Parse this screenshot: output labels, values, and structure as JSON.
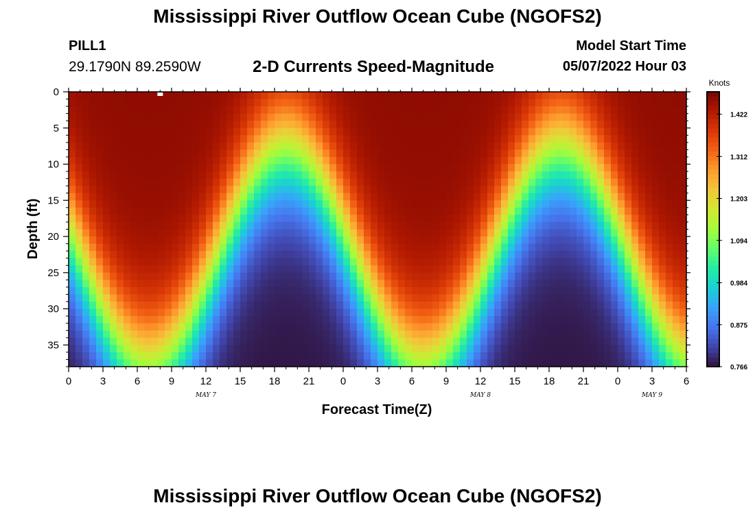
{
  "header": {
    "title": "Mississippi River Outflow Ocean Cube (NGOFS2)",
    "station": "PILL1",
    "coordinates": "29.1790N  89.2590W",
    "plot_title": "2-D Currents Speed-Magnitude",
    "model_start_label": "Model Start Time",
    "model_start_value": "05/07/2022 Hour 03"
  },
  "footer": {
    "title": "Mississippi River Outflow Ocean Cube (NGOFS2)"
  },
  "chart_data": {
    "type": "heatmap",
    "xlabel": "Forecast Time(Z)",
    "ylabel": "Depth (ft)",
    "colorbar_label": "Knots",
    "colorbar_ticks": [
      1.422,
      1.312,
      1.203,
      1.094,
      0.984,
      0.875,
      0.766
    ],
    "colorbar_range": [
      0.766,
      1.48
    ],
    "x_range_hours": [
      0,
      54
    ],
    "x_tick_labels": [
      "0",
      "3",
      "6",
      "9",
      "12",
      "15",
      "18",
      "21",
      "0",
      "3",
      "6",
      "9",
      "12",
      "15",
      "18",
      "21",
      "0",
      "3",
      "6"
    ],
    "x_date_labels": [
      {
        "label": "MAY 7",
        "hour": 12
      },
      {
        "label": "MAY 8",
        "hour": 36
      },
      {
        "label": "MAY 9",
        "hour": 51
      }
    ],
    "y_range_ft": [
      0,
      38
    ],
    "y_ticks": [
      0,
      5,
      10,
      15,
      20,
      25,
      30,
      35
    ],
    "y_inverted": true,
    "speed_profile": {
      "peak_hours": [
        7,
        31
      ],
      "surface_max_knots": 1.46,
      "bottom_min_knots": 0.77,
      "period_hours": 24
    },
    "colormap": [
      "#30123b",
      "#4145ab",
      "#4675ed",
      "#39a2fc",
      "#1bcfd4",
      "#24eca6",
      "#61fc6c",
      "#a4fc3b",
      "#d1e834",
      "#f3c63a",
      "#fe9b2d",
      "#f36315",
      "#d93806",
      "#b11901",
      "#7a0402"
    ]
  }
}
